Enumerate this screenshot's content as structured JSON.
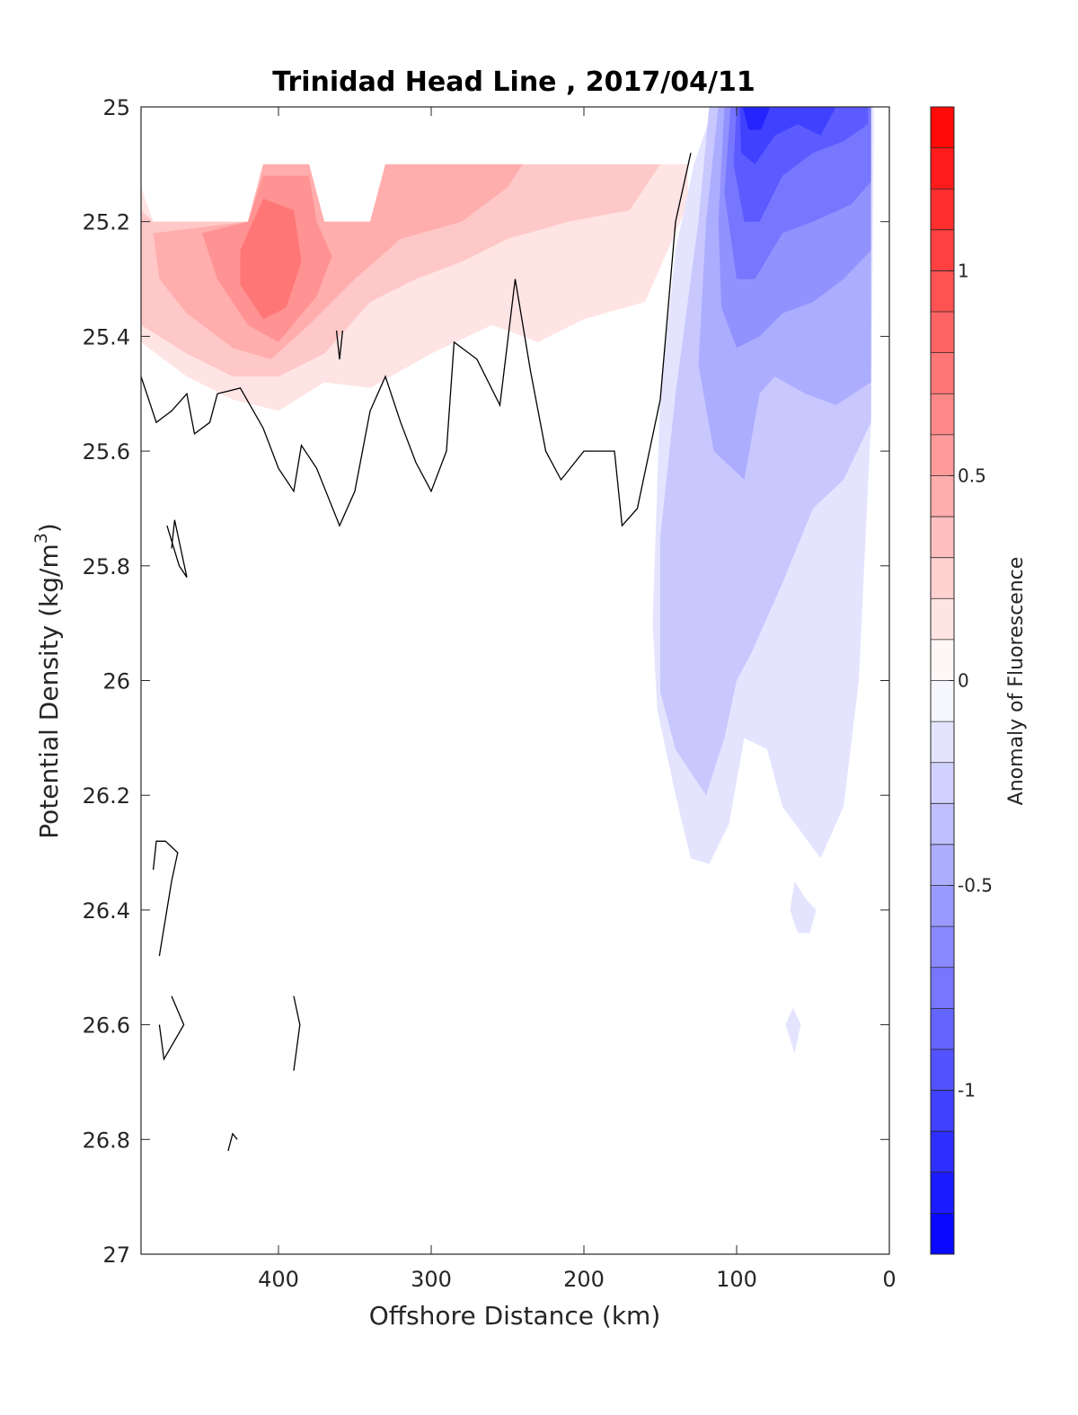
{
  "chart_data": {
    "type": "contour",
    "title": "Trinidad Head Line , 2017/04/11",
    "xlabel": "Offshore Distance (km)",
    "ylabel": "Potential Density (kg/m",
    "ylabel_superscript": "3",
    "ylabel_suffix": ")",
    "colorbar_label": "Anomaly of Fluorescence",
    "x_reversed": true,
    "y_reversed": true,
    "xlim": [
      0,
      490
    ],
    "ylim": [
      25,
      27
    ],
    "x_ticks": [
      400,
      300,
      200,
      100,
      0
    ],
    "x_tick_labels": [
      "400",
      "300",
      "200",
      "100",
      "0"
    ],
    "y_ticks": [
      25,
      25.2,
      25.4,
      25.6,
      25.8,
      26,
      26.2,
      26.4,
      26.6,
      26.8,
      27
    ],
    "y_tick_labels": [
      "25",
      "25.2",
      "25.4",
      "25.6",
      "25.8",
      "26",
      "26.2",
      "26.4",
      "26.6",
      "26.8",
      "27"
    ],
    "colorbar": {
      "clim": [
        -1.4,
        1.4
      ],
      "step": 0.1,
      "ticks": [
        1,
        0.5,
        0,
        -0.5,
        -1
      ],
      "tick_labels": [
        "1",
        "0.5",
        "0",
        "-0.5",
        "-1"
      ],
      "colormap": "blue-white-red",
      "color_max": "#ff0000",
      "color_min": "#0000ff",
      "color_zero": "#ffffff"
    },
    "zero_contour_color": "#000000",
    "regions": [
      {
        "name": "surface positive anomaly",
        "sign": "positive",
        "x_range_km": [
          130,
          490
        ],
        "density_range": [
          25.1,
          25.53
        ],
        "peak_anomaly": 0.8,
        "peak_location": {
          "x_km": 405,
          "density": 25.3
        }
      },
      {
        "name": "nearshore negative anomaly",
        "sign": "negative",
        "x_range_km": [
          10,
          155
        ],
        "density_range": [
          25.0,
          26.32
        ],
        "peak_anomaly": -1.2,
        "peak_location": {
          "x_km": 95,
          "density": 25.03
        }
      }
    ],
    "zero_contour": [
      {
        "x_km": [
          490,
          480,
          470,
          460,
          455,
          445,
          440,
          425,
          410,
          400,
          390,
          385,
          375,
          360,
          350,
          340,
          330,
          320,
          310,
          300,
          290,
          285,
          270,
          255,
          245,
          235,
          225,
          215,
          200,
          190,
          180,
          175,
          165,
          150,
          140,
          130
        ],
        "density": [
          25.47,
          25.55,
          25.53,
          25.5,
          25.57,
          25.55,
          25.5,
          25.49,
          25.56,
          25.63,
          25.67,
          25.59,
          25.63,
          25.73,
          25.67,
          25.53,
          25.47,
          25.55,
          25.62,
          25.67,
          25.6,
          25.41,
          25.44,
          25.52,
          25.3,
          25.46,
          25.6,
          25.65,
          25.6,
          25.6,
          25.6,
          25.73,
          25.7,
          25.51,
          25.2,
          25.08
        ]
      }
    ]
  }
}
